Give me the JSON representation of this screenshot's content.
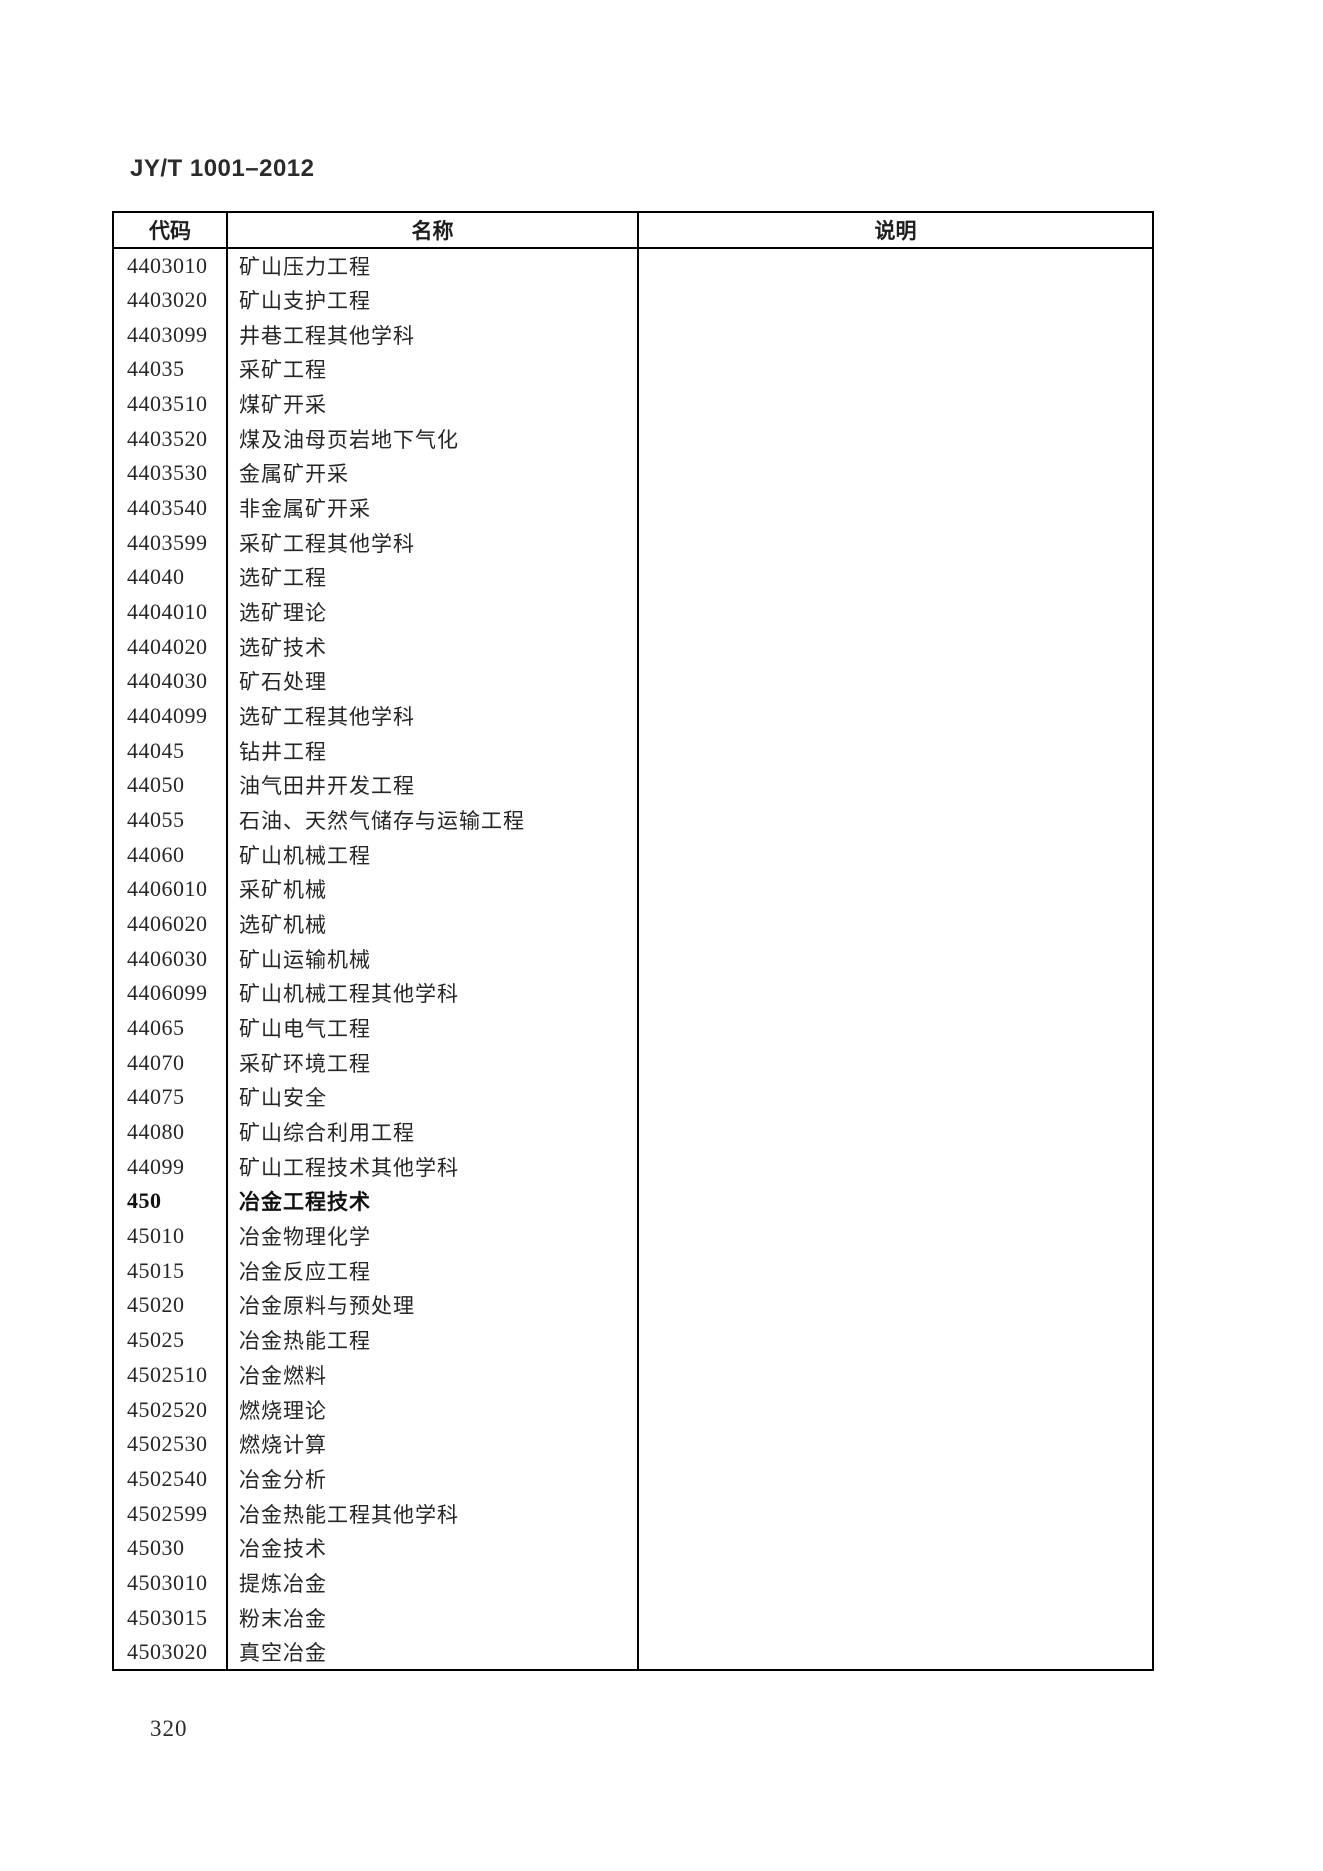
{
  "page": {
    "standard_number": "JY/T 1001–2012",
    "page_number": "320"
  },
  "table": {
    "headers": [
      "代码",
      "名称",
      "说明"
    ],
    "rows": [
      {
        "code": "4403010",
        "name": "矿山压力工程",
        "description": "",
        "bold": false
      },
      {
        "code": "4403020",
        "name": "矿山支护工程",
        "description": "",
        "bold": false
      },
      {
        "code": "4403099",
        "name": "井巷工程其他学科",
        "description": "",
        "bold": false
      },
      {
        "code": "44035",
        "name": "采矿工程",
        "description": "",
        "bold": false
      },
      {
        "code": "4403510",
        "name": "煤矿开采",
        "description": "",
        "bold": false
      },
      {
        "code": "4403520",
        "name": "煤及油母页岩地下气化",
        "description": "",
        "bold": false
      },
      {
        "code": "4403530",
        "name": "金属矿开采",
        "description": "",
        "bold": false
      },
      {
        "code": "4403540",
        "name": "非金属矿开采",
        "description": "",
        "bold": false
      },
      {
        "code": "4403599",
        "name": "采矿工程其他学科",
        "description": "",
        "bold": false
      },
      {
        "code": "44040",
        "name": "选矿工程",
        "description": "",
        "bold": false
      },
      {
        "code": "4404010",
        "name": "选矿理论",
        "description": "",
        "bold": false
      },
      {
        "code": "4404020",
        "name": "选矿技术",
        "description": "",
        "bold": false
      },
      {
        "code": "4404030",
        "name": "矿石处理",
        "description": "",
        "bold": false
      },
      {
        "code": "4404099",
        "name": "选矿工程其他学科",
        "description": "",
        "bold": false
      },
      {
        "code": "44045",
        "name": "钻井工程",
        "description": "",
        "bold": false
      },
      {
        "code": "44050",
        "name": "油气田井开发工程",
        "description": "",
        "bold": false
      },
      {
        "code": "44055",
        "name": "石油、天然气储存与运输工程",
        "description": "",
        "bold": false
      },
      {
        "code": "44060",
        "name": "矿山机械工程",
        "description": "",
        "bold": false
      },
      {
        "code": "4406010",
        "name": "采矿机械",
        "description": "",
        "bold": false
      },
      {
        "code": "4406020",
        "name": "选矿机械",
        "description": "",
        "bold": false
      },
      {
        "code": "4406030",
        "name": "矿山运输机械",
        "description": "",
        "bold": false
      },
      {
        "code": "4406099",
        "name": "矿山机械工程其他学科",
        "description": "",
        "bold": false
      },
      {
        "code": "44065",
        "name": "矿山电气工程",
        "description": "",
        "bold": false
      },
      {
        "code": "44070",
        "name": "采矿环境工程",
        "description": "",
        "bold": false
      },
      {
        "code": "44075",
        "name": "矿山安全",
        "description": "",
        "bold": false
      },
      {
        "code": "44080",
        "name": "矿山综合利用工程",
        "description": "",
        "bold": false
      },
      {
        "code": "44099",
        "name": "矿山工程技术其他学科",
        "description": "",
        "bold": false
      },
      {
        "code": "450",
        "name": "冶金工程技术",
        "description": "",
        "bold": true
      },
      {
        "code": "45010",
        "name": "冶金物理化学",
        "description": "",
        "bold": false
      },
      {
        "code": "45015",
        "name": "冶金反应工程",
        "description": "",
        "bold": false
      },
      {
        "code": "45020",
        "name": "冶金原料与预处理",
        "description": "",
        "bold": false
      },
      {
        "code": "45025",
        "name": "冶金热能工程",
        "description": "",
        "bold": false
      },
      {
        "code": "4502510",
        "name": "冶金燃料",
        "description": "",
        "bold": false
      },
      {
        "code": "4502520",
        "name": "燃烧理论",
        "description": "",
        "bold": false
      },
      {
        "code": "4502530",
        "name": "燃烧计算",
        "description": "",
        "bold": false
      },
      {
        "code": "4502540",
        "name": "冶金分析",
        "description": "",
        "bold": false
      },
      {
        "code": "4502599",
        "name": "冶金热能工程其他学科",
        "description": "",
        "bold": false
      },
      {
        "code": "45030",
        "name": "冶金技术",
        "description": "",
        "bold": false
      },
      {
        "code": "4503010",
        "name": "提炼冶金",
        "description": "",
        "bold": false
      },
      {
        "code": "4503015",
        "name": "粉末冶金",
        "description": "",
        "bold": false
      },
      {
        "code": "4503020",
        "name": "真空冶金",
        "description": "",
        "bold": false
      }
    ]
  }
}
